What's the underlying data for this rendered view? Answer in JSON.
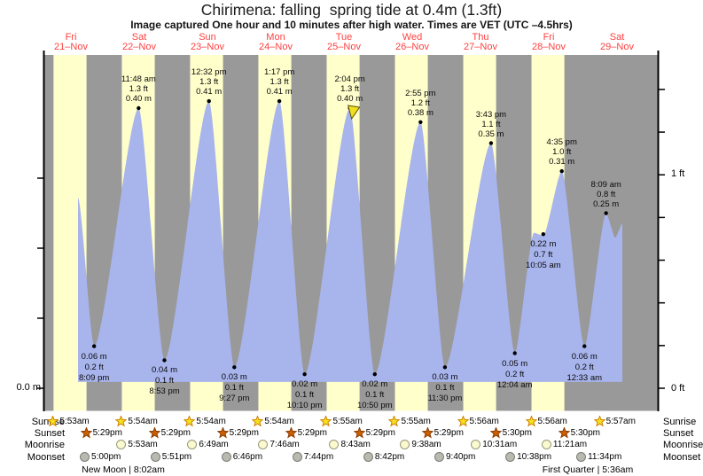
{
  "title": "Chirimena: falling  spring tide at 0.4m (1.3ft)",
  "subtitle": "Image captured One hour and 10 minutes after high water. Times are VET (UTC –4.5hrs)",
  "days": [
    {
      "name": "Fri",
      "date": "21–Nov"
    },
    {
      "name": "Sat",
      "date": "22–Nov"
    },
    {
      "name": "Sun",
      "date": "23–Nov"
    },
    {
      "name": "Mon",
      "date": "24–Nov"
    },
    {
      "name": "Tue",
      "date": "25–Nov"
    },
    {
      "name": "Wed",
      "date": "26–Nov"
    },
    {
      "name": "Thu",
      "date": "27–Nov"
    },
    {
      "name": "Fri",
      "date": "28–Nov"
    },
    {
      "name": "Sat",
      "date": "29–Nov"
    }
  ],
  "axes": {
    "left_zero": "0.0 m",
    "right_one_ft": "1 ft",
    "right_zero_ft": "0 ft",
    "left_ticks_m": [
      0,
      0.1,
      0.2,
      0.3
    ],
    "right_ticks_ft": [
      0,
      0.2,
      0.4,
      0.6,
      0.8,
      1.0,
      1.2,
      1.4
    ]
  },
  "chart_data": {
    "type": "area",
    "title": "Chirimena: falling  spring tide at 0.4m (1.3ft)",
    "x_range_days": [
      "21-Nov",
      "29-Nov"
    ],
    "y_unit_left": "m",
    "y_unit_right": "ft",
    "ylim_m": [
      0,
      0.48
    ],
    "highs": [
      {
        "day": 1,
        "time": "11:48 am",
        "ft_label": "1.3 ft",
        "m_label": "0.40 m",
        "m": 0.4
      },
      {
        "day": 2,
        "time": "12:32 pm",
        "ft_label": "1.3 ft",
        "m_label": "0.41 m",
        "m": 0.41
      },
      {
        "day": 3,
        "time": "1:17 pm",
        "ft_label": "1.3 ft",
        "m_label": "0.41 m",
        "m": 0.41
      },
      {
        "day": 4,
        "time": "2:04 pm",
        "ft_label": "1.3 ft",
        "m_label": "0.40 m",
        "m": 0.4,
        "captured": true
      },
      {
        "day": 5,
        "time": "2:55 pm",
        "ft_label": "1.2 ft",
        "m_label": "0.38 m",
        "m": 0.38
      },
      {
        "day": 6,
        "time": "3:43 pm",
        "ft_label": "1.1 ft",
        "m_label": "0.35 m",
        "m": 0.35
      },
      {
        "day": 7,
        "time": "4:35 pm",
        "ft_label": "1.0 ft",
        "m_label": "0.31 m",
        "m": 0.31
      },
      {
        "day": 8,
        "time": "8:09 am",
        "ft_label": "0.8 ft",
        "m_label": "0.25 m",
        "m": 0.25
      }
    ],
    "lows": [
      {
        "day": 0,
        "time": "8:09 pm",
        "ft_label": "0.2 ft",
        "m_label": "0.06 m",
        "m": 0.06
      },
      {
        "day": 1,
        "time": "8:53 pm",
        "ft_label": "0.1 ft",
        "m_label": "0.04 m",
        "m": 0.04
      },
      {
        "day": 2,
        "time": "9:27 pm",
        "ft_label": "0.1 ft",
        "m_label": "0.03 m",
        "m": 0.03
      },
      {
        "day": 3,
        "time": "10:10 pm",
        "ft_label": "0.1 ft",
        "m_label": "0.02 m",
        "m": 0.02
      },
      {
        "day": 4,
        "time": "10:50 pm",
        "ft_label": "0.1 ft",
        "m_label": "0.02 m",
        "m": 0.02
      },
      {
        "day": 5,
        "time": "11:30 pm",
        "ft_label": "0.1 ft",
        "m_label": "0.03 m",
        "m": 0.03
      },
      {
        "day": 7,
        "time": "12:04 am",
        "ft_label": "0.2 ft",
        "m_label": "0.05 m",
        "m": 0.05
      },
      {
        "day": 7,
        "time": "10:05 am",
        "ft_label": "0.7 ft",
        "m_label": "0.22 m",
        "m": 0.22
      },
      {
        "day": 8,
        "time": "12:33 am",
        "ft_label": "0.2 ft",
        "m_label": "0.06 m",
        "m": 0.06
      }
    ],
    "curve_t_m": [
      [
        0.604,
        0.272
      ],
      [
        0.84,
        0.06
      ],
      [
        1.492,
        0.4
      ],
      [
        1.87,
        0.04
      ],
      [
        2.522,
        0.41
      ],
      [
        2.894,
        0.03
      ],
      [
        3.554,
        0.41
      ],
      [
        3.924,
        0.02
      ],
      [
        4.586,
        0.4
      ],
      [
        4.951,
        0.02
      ],
      [
        5.622,
        0.38
      ],
      [
        5.979,
        0.03
      ],
      [
        6.655,
        0.35
      ],
      [
        7.003,
        0.05
      ],
      [
        7.283,
        0.222
      ],
      [
        7.42,
        0.218
      ],
      [
        7.691,
        0.31
      ],
      [
        8.023,
        0.06
      ],
      [
        8.34,
        0.25
      ],
      [
        8.474,
        0.215
      ],
      [
        8.578,
        0.235
      ]
    ],
    "base_m": 0.009,
    "capture_marker": {
      "day": 4,
      "time": "2:04 pm",
      "note": "triangle at captured high water"
    },
    "colors": {
      "daylight": "#ffffcc",
      "night": "#999999",
      "water": "#a8b4ec",
      "day_label": "#ff4040",
      "capture": "#f2df1e",
      "axis": "#000000"
    }
  },
  "almanac": {
    "rows": [
      {
        "label": "Sunrise",
        "icon": "sunrise-star",
        "fill": "#f5e31c",
        "stroke": "#d08000",
        "events": [
          {
            "day": 0,
            "time": "5:53am"
          },
          {
            "day": 1,
            "time": "5:54am"
          },
          {
            "day": 2,
            "time": "5:54am"
          },
          {
            "day": 3,
            "time": "5:54am"
          },
          {
            "day": 4,
            "time": "5:55am"
          },
          {
            "day": 5,
            "time": "5:55am"
          },
          {
            "day": 6,
            "time": "5:56am"
          },
          {
            "day": 7,
            "time": "5:56am"
          },
          {
            "day": 8,
            "time": "5:57am"
          }
        ]
      },
      {
        "label": "Sunset",
        "icon": "sunset-star",
        "fill": "#cc5f00",
        "stroke": "#8a3c00",
        "events": [
          {
            "day": 0,
            "time": "5:29pm"
          },
          {
            "day": 1,
            "time": "5:29pm"
          },
          {
            "day": 2,
            "time": "5:29pm"
          },
          {
            "day": 3,
            "time": "5:29pm"
          },
          {
            "day": 4,
            "time": "5:29pm"
          },
          {
            "day": 5,
            "time": "5:29pm"
          },
          {
            "day": 6,
            "time": "5:30pm"
          },
          {
            "day": 7,
            "time": "5:30pm"
          }
        ]
      },
      {
        "label": "Moonrise",
        "icon": "moonrise-circle",
        "fill": "#fbf9cf",
        "stroke": "#99997a",
        "events": [
          {
            "day": 1,
            "time": "5:53am"
          },
          {
            "day": 2,
            "time": "6:49am"
          },
          {
            "day": 3,
            "time": "7:46am"
          },
          {
            "day": 4,
            "time": "8:43am"
          },
          {
            "day": 5,
            "time": "9:38am"
          },
          {
            "day": 6,
            "time": "10:31am"
          },
          {
            "day": 7,
            "time": "11:21am"
          }
        ]
      },
      {
        "label": "Moonset",
        "icon": "moonset-circle",
        "fill": "#b9b9b0",
        "stroke": "#7d7d76",
        "events": [
          {
            "day": 0,
            "time": "5:00pm"
          },
          {
            "day": 1,
            "time": "5:51pm"
          },
          {
            "day": 2,
            "time": "6:46pm"
          },
          {
            "day": 3,
            "time": "7:44pm"
          },
          {
            "day": 4,
            "time": "8:42pm"
          },
          {
            "day": 5,
            "time": "9:40pm"
          },
          {
            "day": 6,
            "time": "10:38pm"
          },
          {
            "day": 7,
            "time": "11:34pm"
          }
        ]
      }
    ],
    "new_moon": "New Moon | 8:02am",
    "first_quarter": "First Quarter | 5:36am"
  }
}
